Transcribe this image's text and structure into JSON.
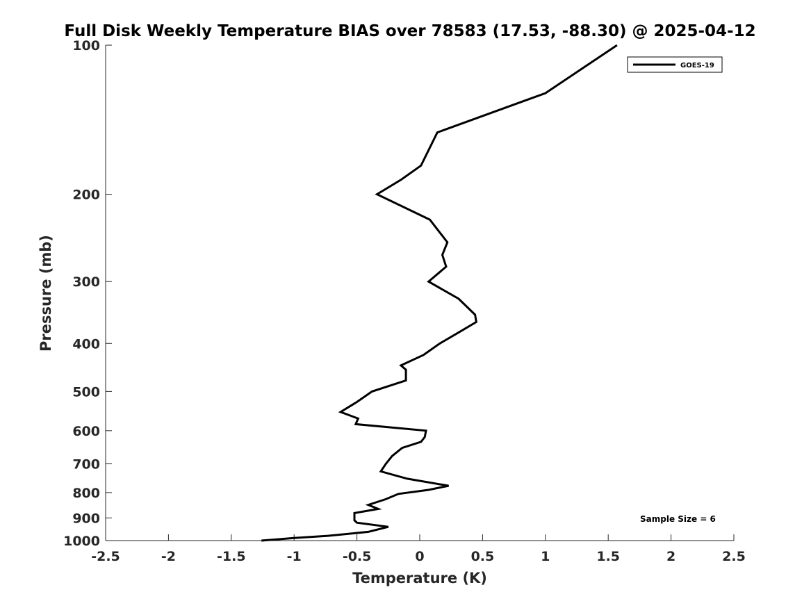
{
  "chart_data": {
    "type": "line",
    "title": "Full Disk Weekly Temperature BIAS over 78583 (17.53, -88.30) @ 2025-04-12",
    "xlabel": "Temperature (K)",
    "ylabel": "Pressure (mb)",
    "xlim": [
      -2.5,
      2.5
    ],
    "ylim": [
      100,
      1000
    ],
    "y_scale": "log",
    "y_reversed": true,
    "grid": false,
    "x_ticks": [
      "-2.5",
      "-2",
      "-1.5",
      "-1",
      "-0.5",
      "0",
      "0.5",
      "1",
      "1.5",
      "2",
      "2.5"
    ],
    "x_tick_values": [
      -2.5,
      -2,
      -1.5,
      -1,
      -0.5,
      0,
      0.5,
      1,
      1.5,
      2,
      2.5
    ],
    "y_ticks": [
      "100",
      "200",
      "300",
      "400",
      "500",
      "600",
      "700",
      "800",
      "900",
      "1000"
    ],
    "y_tick_values": [
      100,
      200,
      300,
      400,
      500,
      600,
      700,
      800,
      900,
      1000
    ],
    "legend_position": "top-right",
    "series": [
      {
        "name": "GOES-19",
        "color": "#000000",
        "points": [
          {
            "t": 1.57,
            "p": 100
          },
          {
            "t": 1.0,
            "p": 125
          },
          {
            "t": 0.14,
            "p": 150
          },
          {
            "t": 0.01,
            "p": 175
          },
          {
            "t": -0.15,
            "p": 187
          },
          {
            "t": -0.34,
            "p": 200
          },
          {
            "t": 0.08,
            "p": 225
          },
          {
            "t": 0.22,
            "p": 250
          },
          {
            "t": 0.18,
            "p": 265
          },
          {
            "t": 0.21,
            "p": 280
          },
          {
            "t": 0.07,
            "p": 300
          },
          {
            "t": 0.31,
            "p": 325
          },
          {
            "t": 0.44,
            "p": 350
          },
          {
            "t": 0.45,
            "p": 362
          },
          {
            "t": 0.31,
            "p": 380
          },
          {
            "t": 0.16,
            "p": 400
          },
          {
            "t": 0.03,
            "p": 422
          },
          {
            "t": -0.15,
            "p": 443
          },
          {
            "t": -0.11,
            "p": 452
          },
          {
            "t": -0.11,
            "p": 475
          },
          {
            "t": -0.38,
            "p": 500
          },
          {
            "t": -0.5,
            "p": 525
          },
          {
            "t": -0.63,
            "p": 550
          },
          {
            "t": -0.49,
            "p": 567
          },
          {
            "t": -0.51,
            "p": 582
          },
          {
            "t": 0.05,
            "p": 600
          },
          {
            "t": 0.04,
            "p": 618
          },
          {
            "t": 0.01,
            "p": 632
          },
          {
            "t": -0.14,
            "p": 650
          },
          {
            "t": -0.22,
            "p": 675
          },
          {
            "t": -0.27,
            "p": 700
          },
          {
            "t": -0.31,
            "p": 725
          },
          {
            "t": -0.1,
            "p": 750
          },
          {
            "t": 0.23,
            "p": 775
          },
          {
            "t": 0.07,
            "p": 790
          },
          {
            "t": -0.17,
            "p": 805
          },
          {
            "t": -0.27,
            "p": 825
          },
          {
            "t": -0.41,
            "p": 847
          },
          {
            "t": -0.33,
            "p": 863
          },
          {
            "t": -0.52,
            "p": 880
          },
          {
            "t": -0.52,
            "p": 910
          },
          {
            "t": -0.5,
            "p": 920
          },
          {
            "t": -0.25,
            "p": 938
          },
          {
            "t": -0.41,
            "p": 960
          },
          {
            "t": -0.73,
            "p": 978
          },
          {
            "t": -1.0,
            "p": 988
          },
          {
            "t": -1.26,
            "p": 1000
          }
        ]
      }
    ],
    "annotations": [
      {
        "text": "Sample Size = 6",
        "position": "bottom-right"
      }
    ]
  }
}
